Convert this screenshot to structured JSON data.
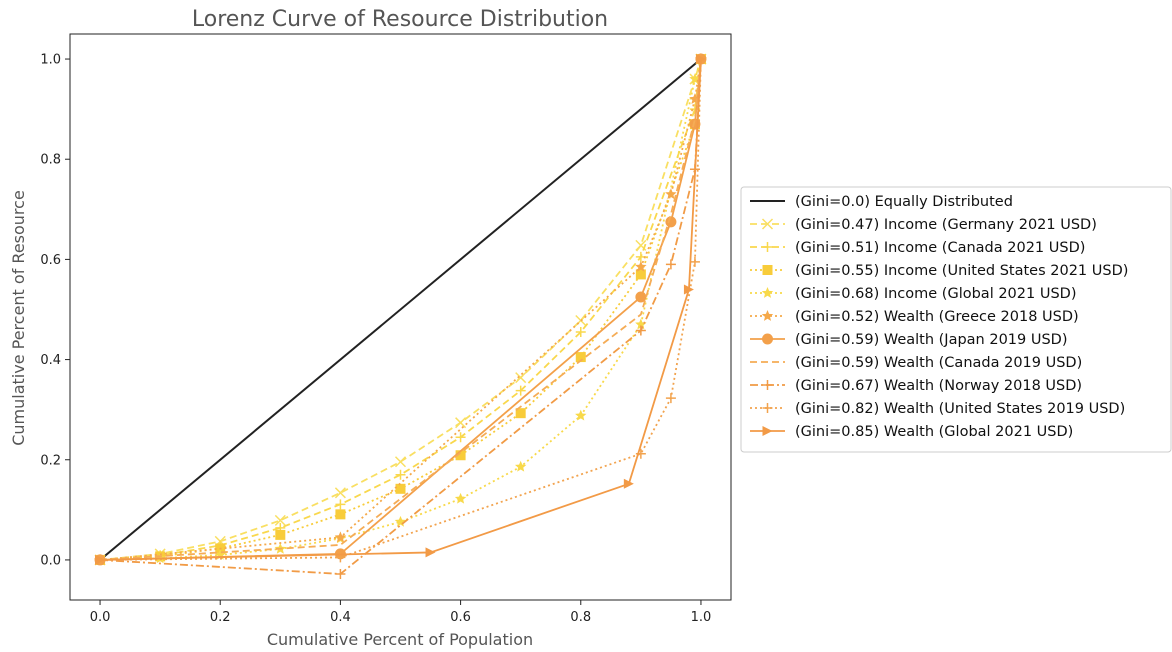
{
  "chart_data": {
    "type": "line",
    "title": "Lorenz Curve of Resource Distribution",
    "xlabel": "Cumulative Percent of Population",
    "ylabel": "Cumulative Percent of Resource",
    "xlim": [
      -0.05,
      1.05
    ],
    "ylim": [
      -0.08,
      1.05
    ],
    "xticks": [
      "0.0",
      "0.2",
      "0.4",
      "0.6",
      "0.8",
      "1.0"
    ],
    "yticks": [
      "0.0",
      "0.2",
      "0.4",
      "0.6",
      "0.8",
      "1.0"
    ],
    "grid": false,
    "legend_position": "right, outside plot area",
    "series": [
      {
        "name": "(Gini=0.0) Equally Distributed",
        "color": "#222222",
        "dash": "solid",
        "marker": "none",
        "x": [
          0,
          1
        ],
        "y": [
          0,
          1
        ]
      },
      {
        "name": "(Gini=0.47) Income (Germany 2021 USD)",
        "color": "#f9df62",
        "dash": "dashed",
        "marker": "x",
        "x": [
          0,
          0.1,
          0.2,
          0.3,
          0.4,
          0.5,
          0.6,
          0.7,
          0.8,
          0.9,
          0.99,
          1
        ],
        "y": [
          0,
          0.012,
          0.037,
          0.079,
          0.134,
          0.196,
          0.274,
          0.364,
          0.478,
          0.628,
          0.96,
          1
        ]
      },
      {
        "name": "(Gini=0.51) Income (Canada 2021 USD)",
        "color": "#f9d84d",
        "dash": "dashed",
        "marker": "+",
        "x": [
          0,
          0.1,
          0.2,
          0.3,
          0.4,
          0.5,
          0.6,
          0.7,
          0.8,
          0.9,
          0.99,
          1
        ],
        "y": [
          0,
          0.009,
          0.029,
          0.064,
          0.111,
          0.17,
          0.245,
          0.338,
          0.455,
          0.605,
          0.9,
          1
        ]
      },
      {
        "name": "(Gini=0.55) Income (United States 2021 USD)",
        "color": "#f8cc3a",
        "dash": "dotted",
        "marker": "square",
        "x": [
          0,
          0.1,
          0.2,
          0.3,
          0.4,
          0.5,
          0.6,
          0.7,
          0.8,
          0.9,
          0.99,
          1
        ],
        "y": [
          0,
          0.007,
          0.023,
          0.05,
          0.091,
          0.142,
          0.209,
          0.293,
          0.405,
          0.57,
          0.87,
          1
        ]
      },
      {
        "name": "(Gini=0.68) Income (Global 2021 USD)",
        "color": "#f8d94a",
        "dash": "dotted",
        "marker": "star",
        "x": [
          0,
          0.1,
          0.2,
          0.3,
          0.4,
          0.5,
          0.6,
          0.7,
          0.8,
          0.9,
          0.99,
          1
        ],
        "y": [
          0,
          0.003,
          0.01,
          0.022,
          0.043,
          0.076,
          0.122,
          0.186,
          0.288,
          0.47,
          0.96,
          1
        ]
      },
      {
        "name": "(Gini=0.52) Wealth (Greece 2018 USD)",
        "color": "#f5a94a",
        "dash": "dotted",
        "marker": "star",
        "x": [
          0,
          0.4,
          0.9,
          0.95,
          0.99,
          1
        ],
        "y": [
          0,
          0.045,
          0.585,
          0.73,
          0.92,
          1
        ]
      },
      {
        "name": "(Gini=0.59) Wealth (Japan 2019 USD)",
        "color": "#f3a04a",
        "dash": "solid",
        "marker": "circle",
        "x": [
          0,
          0.4,
          0.9,
          0.95,
          0.99,
          1
        ],
        "y": [
          0,
          0.012,
          0.525,
          0.675,
          0.87,
          1
        ]
      },
      {
        "name": "(Gini=0.59) Wealth (Canada 2019 USD)",
        "color": "#f5ac56",
        "dash": "dashed",
        "marker": "none",
        "x": [
          0,
          0.4,
          0.9,
          0.95,
          0.99,
          1
        ],
        "y": [
          0,
          0.03,
          0.49,
          0.69,
          0.88,
          1
        ]
      },
      {
        "name": "(Gini=0.67) Wealth (Norway 2018 USD)",
        "color": "#f19b46",
        "dash": "dashdot",
        "marker": "+",
        "x": [
          0,
          0.4,
          0.9,
          0.95,
          0.99,
          1
        ],
        "y": [
          0,
          -0.028,
          0.458,
          0.59,
          0.78,
          1
        ]
      },
      {
        "name": "(Gini=0.82) Wealth (United States 2019 USD)",
        "color": "#f2a34e",
        "dash": "dotted",
        "marker": "+",
        "x": [
          0,
          0.4,
          0.9,
          0.95,
          0.99,
          1
        ],
        "y": [
          0,
          0.005,
          0.212,
          0.323,
          0.595,
          1
        ]
      },
      {
        "name": "(Gini=0.85) Wealth (Global 2021 USD)",
        "color": "#f29a46",
        "dash": "solid",
        "marker": "triangle-right",
        "x": [
          0,
          0.55,
          0.88,
          0.98,
          1
        ],
        "y": [
          0,
          0.015,
          0.152,
          0.54,
          1
        ]
      }
    ]
  }
}
